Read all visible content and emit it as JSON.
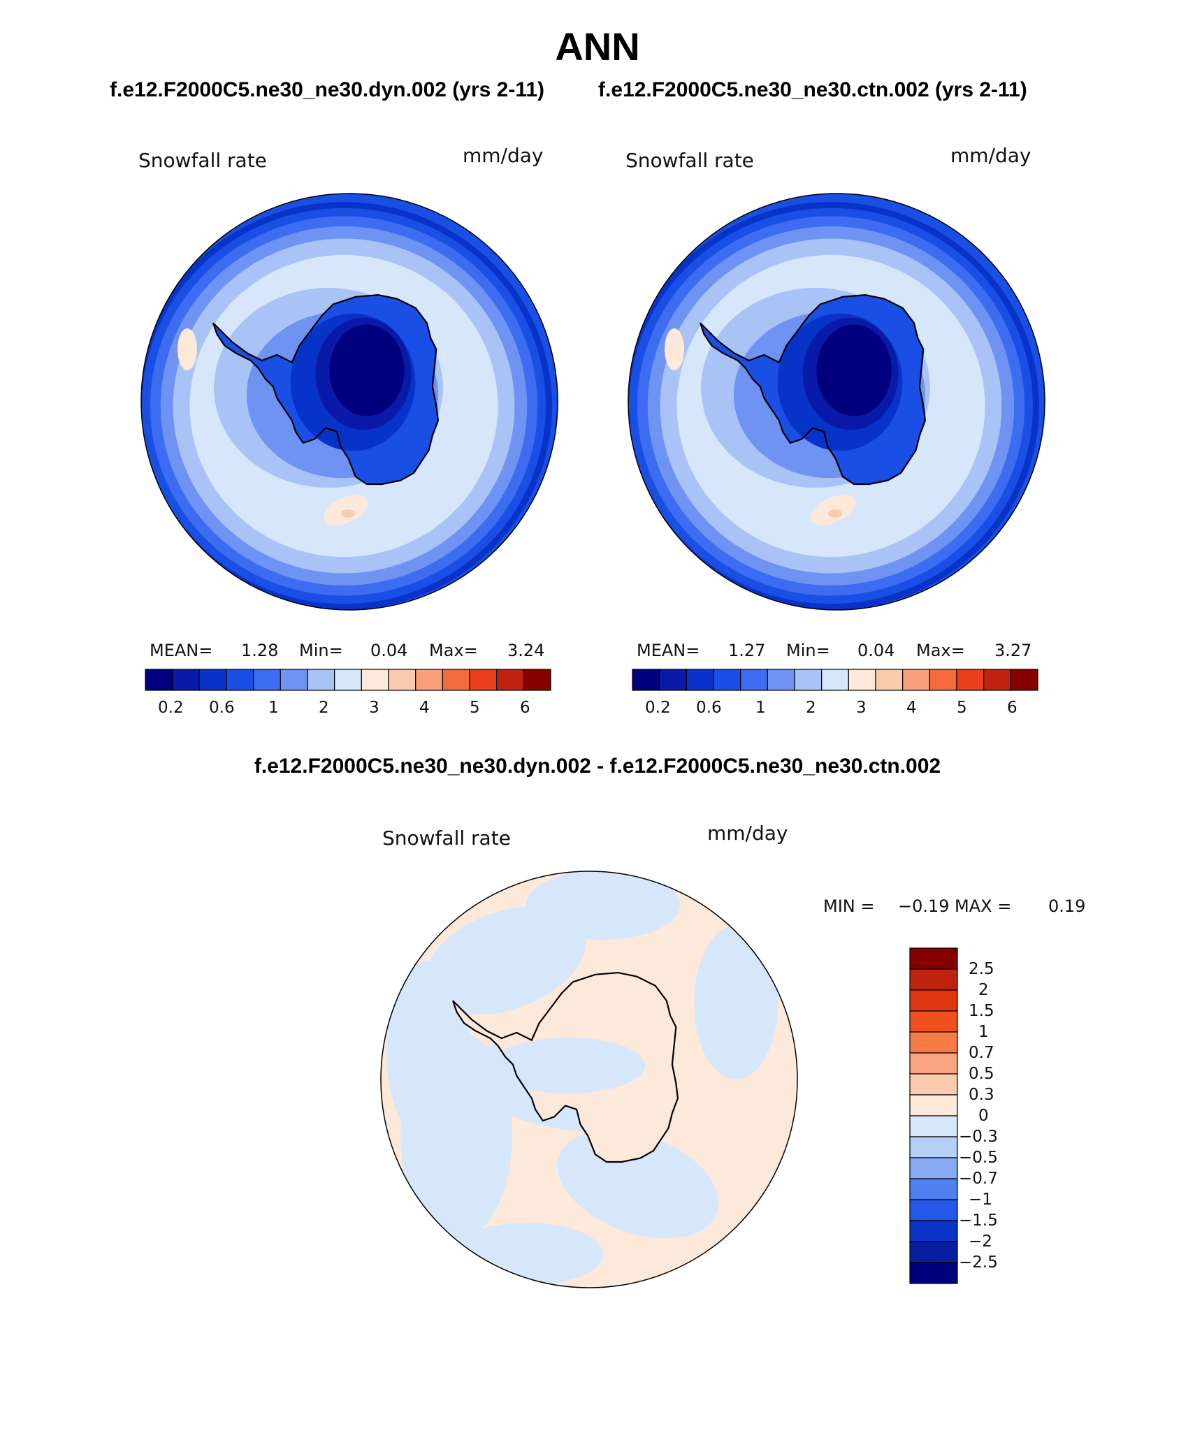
{
  "figure": {
    "title": "ANN",
    "subtitle_left": "f.e12.F2000C5.ne30_ne30.dyn.002 (yrs 2-11)",
    "subtitle_right": "f.e12.F2000C5.ne30_ne30.ctn.002 (yrs 2-11)",
    "diff_title": "f.e12.F2000C5.ne30_ne30.dyn.002 - f.e12.F2000C5.ne30_ne30.ctn.002"
  },
  "chart_data": [
    {
      "type": "heatmap",
      "projection": "south polar stereographic",
      "case": "f.e12.F2000C5.ne30_ne30.dyn.002 (yrs 2-11)",
      "variable": "Snowfall rate",
      "units": "mm/day",
      "stats": {
        "mean_label": "MEAN=",
        "mean": "1.28",
        "min_label": "Min=",
        "min": "0.04",
        "max_label": "Max=",
        "max": "3.24"
      },
      "colorbar": {
        "levels": [
          0.2,
          0.4,
          0.6,
          0.8,
          1,
          1.5,
          2,
          2.5,
          3,
          3.5,
          4,
          4.5,
          5,
          5.5,
          6
        ],
        "tick_labels": [
          "0.2",
          "0.6",
          "1",
          "2",
          "3",
          "4",
          "5",
          "6"
        ],
        "colors": [
          "#00007f",
          "#0a1aa8",
          "#0833c8",
          "#1a4fe6",
          "#3c6df0",
          "#6f93f2",
          "#a9c3f7",
          "#d6e6fb",
          "#fde9d9",
          "#fbcbb0",
          "#f9a07a",
          "#f46b3e",
          "#e8401a",
          "#bf220e",
          "#870000"
        ]
      }
    },
    {
      "type": "heatmap",
      "projection": "south polar stereographic",
      "case": "f.e12.F2000C5.ne30_ne30.ctn.002 (yrs 2-11)",
      "variable": "Snowfall rate",
      "units": "mm/day",
      "stats": {
        "mean_label": "MEAN=",
        "mean": "1.27",
        "min_label": "Min=",
        "min": "0.04",
        "max_label": "Max=",
        "max": "3.27"
      },
      "colorbar": {
        "levels": [
          0.2,
          0.4,
          0.6,
          0.8,
          1,
          1.5,
          2,
          2.5,
          3,
          3.5,
          4,
          4.5,
          5,
          5.5,
          6
        ],
        "tick_labels": [
          "0.2",
          "0.6",
          "1",
          "2",
          "3",
          "4",
          "5",
          "6"
        ],
        "colors": [
          "#00007f",
          "#0a1aa8",
          "#0833c8",
          "#1a4fe6",
          "#3c6df0",
          "#6f93f2",
          "#a9c3f7",
          "#d6e6fb",
          "#fde9d9",
          "#fbcbb0",
          "#f9a07a",
          "#f46b3e",
          "#e8401a",
          "#bf220e",
          "#870000"
        ]
      }
    },
    {
      "type": "heatmap",
      "projection": "south polar stereographic",
      "case": "f.e12.F2000C5.ne30_ne30.dyn.002 - f.e12.F2000C5.ne30_ne30.ctn.002",
      "variable": "Snowfall rate",
      "units": "mm/day",
      "stats": {
        "min_label": "MIN =",
        "min": "−0.19",
        "max_label": "MAX =",
        "max": "0.19"
      },
      "colorbar": {
        "orientation": "vertical",
        "tick_labels": [
          "2.5",
          "2",
          "1.5",
          "1",
          "0.7",
          "0.5",
          "0.3",
          "0",
          "−0.3",
          "−0.5",
          "−0.7",
          "−1",
          "−1.5",
          "−2",
          "−2.5"
        ],
        "colors": [
          "#870000",
          "#bf220e",
          "#e0360f",
          "#f0501e",
          "#f87a46",
          "#f9a582",
          "#fbcbb0",
          "#fde9d9",
          "#d6e6fb",
          "#b5cff7",
          "#86aaf3",
          "#4f7ff0",
          "#2358e8",
          "#0a35c8",
          "#071ea0",
          "#00007f"
        ]
      }
    }
  ]
}
